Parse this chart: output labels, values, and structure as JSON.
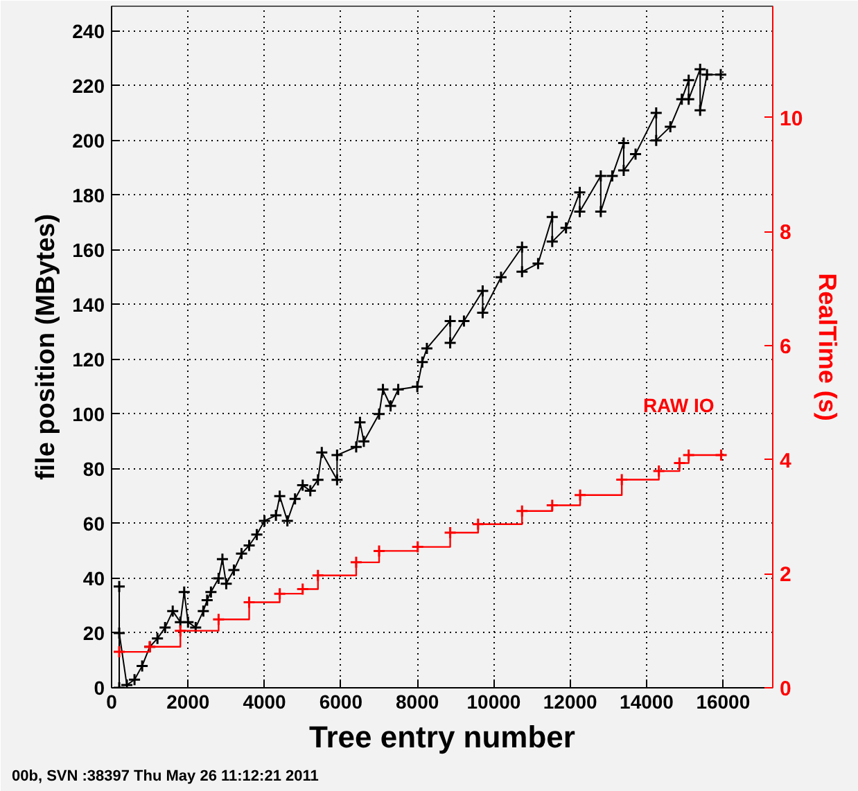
{
  "chart_data": {
    "type": "line",
    "xlabel": "Tree entry number",
    "ylabel": "file position (MBytes)",
    "y2label": "RealTime (s)",
    "annotations": [
      "00b, SVN :38397 Thu May 26 11:12:21 2011"
    ],
    "xlim": [
      0,
      17300
    ],
    "xticks": [
      0,
      2000,
      4000,
      6000,
      8000,
      10000,
      12000,
      14000,
      16000
    ],
    "ylim": [
      0,
      249
    ],
    "yticks": [
      0,
      20,
      40,
      60,
      80,
      100,
      120,
      140,
      160,
      180,
      200,
      220,
      240
    ],
    "y2lim": [
      0,
      11.95
    ],
    "y2ticks": [
      0,
      2,
      4,
      6,
      8,
      10
    ],
    "grid": true,
    "marker": "cross",
    "series": [
      {
        "color": "#000000",
        "x": [
          200,
          200,
          200,
          400,
          600,
          800,
          1000,
          1200,
          1400,
          1600,
          1800,
          1900,
          2000,
          2200,
          2400,
          2500,
          2600,
          2800,
          2900,
          3000,
          3200,
          3400,
          3600,
          3800,
          4000,
          4300,
          4400,
          4600,
          4800,
          5000,
          5200,
          5400,
          5500,
          5900,
          5900,
          6400,
          6500,
          6600,
          7000,
          7100,
          7300,
          7500,
          8000,
          8130,
          8250,
          8860,
          8860,
          9220,
          9710,
          9710,
          10190,
          10740,
          10740,
          11160,
          11530,
          11530,
          11890,
          12250,
          12250,
          12800,
          12800,
          13100,
          13400,
          13400,
          13710,
          14250,
          14250,
          14620,
          14920,
          15100,
          15100,
          15400,
          15400,
          15580,
          15940
        ],
        "values": [
          0,
          37,
          20,
          1,
          3,
          8,
          15,
          18,
          22,
          28,
          24,
          35,
          24,
          22,
          28,
          32,
          35,
          40,
          47,
          38,
          43,
          49,
          52,
          56,
          61,
          63,
          70,
          61,
          69,
          74,
          72,
          76,
          86,
          76,
          85,
          88,
          97,
          90,
          100,
          109,
          103,
          109,
          110,
          119,
          124,
          134,
          126,
          134,
          145,
          137,
          150,
          161,
          152,
          155,
          172,
          163,
          168,
          181,
          174,
          187,
          174,
          187,
          199,
          189,
          195,
          210,
          200,
          205,
          215,
          222,
          215,
          226,
          211,
          224,
          224
        ]
      },
      {
        "name": "RAW IO",
        "color": "#ff0000",
        "type": "step",
        "axis": "y2",
        "x": [
          200,
          1000,
          1800,
          2800,
          3600,
          4400,
          5000,
          5400,
          6400,
          7000,
          8010,
          8860,
          9590,
          10740,
          11530,
          12260,
          13350,
          14320,
          14860,
          15100,
          15950
        ],
        "values": [
          0.63,
          0.72,
          1.0,
          1.2,
          1.5,
          1.65,
          1.73,
          1.97,
          2.2,
          2.4,
          2.47,
          2.72,
          2.87,
          3.1,
          3.2,
          3.38,
          3.65,
          3.8,
          3.94,
          4.08,
          4.08
        ]
      }
    ]
  }
}
